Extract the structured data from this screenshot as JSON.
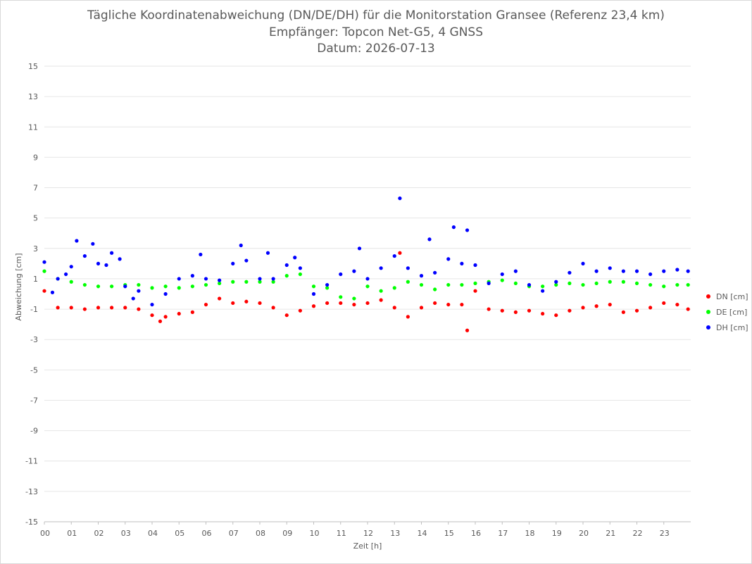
{
  "chart": {
    "title_line1": "Tägliche Koordinatenabweichung (DN/DE/DH) für die Monitorstation Gransee (Referenz 23,4 km)",
    "title_line2": "Empfänger: Topcon Net-G5, 4 GNSS",
    "title_line3": "Datum: 2026-07-13"
  },
  "chart_data": {
    "type": "scatter",
    "title": "Tägliche Koordinatenabweichung (DN/DE/DH) für die Monitorstation Gransee (Referenz 23,4 km)",
    "subtitle": [
      "Empfänger: Topcon Net-G5, 4 GNSS",
      "Datum: 2026-07-13"
    ],
    "xlabel": "Zeit [h]",
    "ylabel": "Abweichung [cm]",
    "xlim": [
      0,
      24
    ],
    "ylim": [
      -15,
      15
    ],
    "x_ticks": [
      "00",
      "01",
      "02",
      "03",
      "04",
      "05",
      "06",
      "07",
      "08",
      "09",
      "10",
      "11",
      "12",
      "13",
      "14",
      "15",
      "16",
      "17",
      "18",
      "19",
      "20",
      "21",
      "22",
      "23"
    ],
    "y_ticks": [
      15,
      13,
      11,
      9,
      7,
      5,
      3,
      1,
      -1,
      -3,
      -5,
      -7,
      -9,
      -11,
      -13,
      -15
    ],
    "grid": "horizontal",
    "legend_position": "right",
    "series": [
      {
        "name": "DN [cm]",
        "color": "#ff0000",
        "x": [
          0.0,
          0.5,
          1.0,
          1.5,
          2.0,
          2.5,
          3.0,
          3.5,
          4.0,
          4.3,
          4.5,
          5.0,
          5.5,
          6.0,
          6.5,
          7.0,
          7.5,
          8.0,
          8.5,
          9.0,
          9.5,
          10.0,
          10.5,
          11.0,
          11.5,
          12.0,
          12.5,
          13.0,
          13.2,
          13.5,
          14.0,
          14.5,
          15.0,
          15.5,
          15.7,
          16.0,
          16.5,
          17.0,
          17.5,
          18.0,
          18.5,
          19.0,
          19.5,
          20.0,
          20.5,
          21.0,
          21.5,
          22.0,
          22.5,
          23.0,
          23.5,
          23.9
        ],
        "y": [
          0.2,
          -0.9,
          -0.9,
          -1.0,
          -0.9,
          -0.9,
          -0.9,
          -1.0,
          -1.4,
          -1.8,
          -1.5,
          -1.3,
          -1.2,
          -0.7,
          -0.3,
          -0.6,
          -0.5,
          -0.6,
          -0.9,
          -1.4,
          -1.1,
          -0.8,
          -0.6,
          -0.6,
          -0.7,
          -0.6,
          -0.4,
          -0.9,
          2.7,
          -1.5,
          -0.9,
          -0.6,
          -0.7,
          -0.7,
          -2.4,
          0.2,
          -1.0,
          -1.1,
          -1.2,
          -1.1,
          -1.3,
          -1.4,
          -1.1,
          -0.9,
          -0.8,
          -0.7,
          -1.2,
          -1.1,
          -0.9,
          -0.6,
          -0.7,
          -1.0
        ]
      },
      {
        "name": "DE [cm]",
        "color": "#00ff00",
        "x": [
          0.0,
          0.5,
          1.0,
          1.5,
          2.0,
          2.5,
          3.0,
          3.5,
          4.0,
          4.5,
          5.0,
          5.5,
          6.0,
          6.5,
          7.0,
          7.5,
          8.0,
          8.5,
          9.0,
          9.5,
          10.0,
          10.5,
          11.0,
          11.5,
          12.0,
          12.5,
          13.0,
          13.5,
          14.0,
          14.5,
          15.0,
          15.5,
          16.0,
          16.5,
          17.0,
          17.5,
          18.0,
          18.5,
          19.0,
          19.5,
          20.0,
          20.5,
          21.0,
          21.5,
          22.0,
          22.5,
          23.0,
          23.5,
          23.9
        ],
        "y": [
          1.5,
          1.0,
          0.8,
          0.6,
          0.5,
          0.5,
          0.6,
          0.6,
          0.4,
          0.5,
          0.4,
          0.5,
          0.6,
          0.7,
          0.8,
          0.8,
          0.8,
          0.8,
          1.2,
          1.3,
          0.5,
          0.4,
          -0.2,
          -0.3,
          0.5,
          0.2,
          0.4,
          0.8,
          0.6,
          0.3,
          0.6,
          0.6,
          0.7,
          0.8,
          0.9,
          0.7,
          0.5,
          0.5,
          0.6,
          0.7,
          0.6,
          0.7,
          0.8,
          0.8,
          0.7,
          0.6,
          0.5,
          0.6,
          0.6
        ]
      },
      {
        "name": "DH [cm]",
        "color": "#0000ff",
        "x": [
          0.0,
          0.3,
          0.5,
          0.8,
          1.0,
          1.2,
          1.5,
          1.8,
          2.0,
          2.3,
          2.5,
          2.8,
          3.0,
          3.3,
          3.5,
          4.0,
          4.5,
          5.0,
          5.5,
          5.8,
          6.0,
          6.5,
          7.0,
          7.3,
          7.5,
          8.0,
          8.3,
          8.5,
          9.0,
          9.3,
          9.5,
          10.0,
          10.5,
          11.0,
          11.5,
          11.7,
          12.0,
          12.5,
          13.0,
          13.2,
          13.5,
          14.0,
          14.3,
          14.5,
          15.0,
          15.2,
          15.5,
          15.7,
          16.0,
          16.5,
          17.0,
          17.5,
          18.0,
          18.5,
          19.0,
          19.5,
          20.0,
          20.5,
          21.0,
          21.5,
          22.0,
          22.5,
          23.0,
          23.5,
          23.9
        ],
        "y": [
          2.1,
          0.1,
          1.0,
          1.3,
          1.8,
          3.5,
          2.5,
          3.3,
          2.0,
          1.9,
          2.7,
          2.3,
          0.5,
          -0.3,
          0.2,
          -0.7,
          0.0,
          1.0,
          1.2,
          2.6,
          1.0,
          0.9,
          2.0,
          3.2,
          2.2,
          1.0,
          2.7,
          1.0,
          1.9,
          2.4,
          1.7,
          0.0,
          0.6,
          1.3,
          1.5,
          3.0,
          1.0,
          1.7,
          2.5,
          6.3,
          1.7,
          1.2,
          3.6,
          1.4,
          2.3,
          4.4,
          2.0,
          4.2,
          1.9,
          0.7,
          1.3,
          1.5,
          0.6,
          0.2,
          0.8,
          1.4,
          2.0,
          1.5,
          1.7,
          1.5,
          1.5,
          1.3,
          1.5,
          1.6,
          1.5
        ]
      }
    ]
  }
}
